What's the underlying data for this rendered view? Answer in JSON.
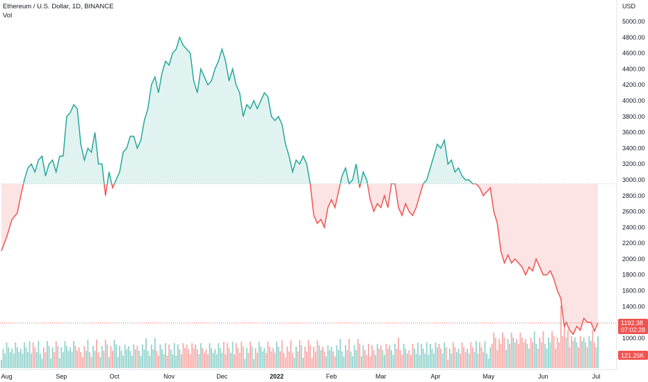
{
  "header": {
    "title": "Ethereum / U.S. Dollar, 1D, BINANCE",
    "volume_label": "Vol"
  },
  "colors": {
    "up": "#26a69a",
    "down": "#ef5350",
    "up_fill": "#e0f3f1",
    "down_fill": "#fde4e4",
    "grid": "#f0f3fa",
    "axis_text": "#131722"
  },
  "chart_data": {
    "type": "area",
    "title": "Ethereum / U.S. Dollar, 1D, BINANCE",
    "ylabel": "USD",
    "ylim": [
      800,
      5150
    ],
    "baseline": 2950,
    "last_price": "1192.38",
    "countdown": "07:02:28",
    "volume_last": "121.26K",
    "y_ticks": [
      "5000.00",
      "4800.00",
      "4600.00",
      "4400.00",
      "4200.00",
      "4000.00",
      "3800.00",
      "3600.00",
      "3400.00",
      "3200.00",
      "3000.00",
      "2800.00",
      "2600.00",
      "2400.00",
      "2200.00",
      "2000.00",
      "1800.00",
      "1600.00",
      "1400.00",
      "1000.00"
    ],
    "x_ticks": [
      {
        "label": "Aug",
        "day": 3,
        "bold": false
      },
      {
        "label": "Sep",
        "day": 34,
        "bold": false
      },
      {
        "label": "Oct",
        "day": 64,
        "bold": false
      },
      {
        "label": "Nov",
        "day": 95,
        "bold": false
      },
      {
        "label": "Dec",
        "day": 125,
        "bold": false
      },
      {
        "label": "2022",
        "day": 156,
        "bold": true
      },
      {
        "label": "Feb",
        "day": 187,
        "bold": false
      },
      {
        "label": "Mar",
        "day": 215,
        "bold": false
      },
      {
        "label": "Apr",
        "day": 246,
        "bold": false
      },
      {
        "label": "May",
        "day": 276,
        "bold": false
      },
      {
        "label": "Jun",
        "day": 307,
        "bold": false
      },
      {
        "label": "Jul",
        "day": 337,
        "bold": false
      }
    ],
    "price_points": [
      [
        0,
        2100
      ],
      [
        3,
        2280
      ],
      [
        6,
        2500
      ],
      [
        9,
        2580
      ],
      [
        11,
        2800
      ],
      [
        13,
        3000
      ],
      [
        15,
        3150
      ],
      [
        17,
        3200
      ],
      [
        19,
        3100
      ],
      [
        21,
        3250
      ],
      [
        23,
        3300
      ],
      [
        25,
        3050
      ],
      [
        27,
        3200
      ],
      [
        29,
        3250
      ],
      [
        31,
        3100
      ],
      [
        33,
        3300
      ],
      [
        35,
        3300
      ],
      [
        37,
        3800
      ],
      [
        39,
        3850
      ],
      [
        41,
        3950
      ],
      [
        43,
        3900
      ],
      [
        45,
        3450
      ],
      [
        47,
        3250
      ],
      [
        49,
        3400
      ],
      [
        51,
        3350
      ],
      [
        53,
        3600
      ],
      [
        55,
        3200
      ],
      [
        57,
        3200
      ],
      [
        59,
        2800
      ],
      [
        61,
        3100
      ],
      [
        63,
        2900
      ],
      [
        65,
        3000
      ],
      [
        67,
        3100
      ],
      [
        69,
        3350
      ],
      [
        71,
        3400
      ],
      [
        73,
        3550
      ],
      [
        75,
        3550
      ],
      [
        77,
        3400
      ],
      [
        79,
        3500
      ],
      [
        81,
        3750
      ],
      [
        83,
        3900
      ],
      [
        85,
        4200
      ],
      [
        87,
        4300
      ],
      [
        89,
        4100
      ],
      [
        91,
        4350
      ],
      [
        93,
        4500
      ],
      [
        95,
        4450
      ],
      [
        97,
        4600
      ],
      [
        99,
        4650
      ],
      [
        101,
        4800
      ],
      [
        103,
        4700
      ],
      [
        105,
        4650
      ],
      [
        107,
        4600
      ],
      [
        109,
        4250
      ],
      [
        111,
        4100
      ],
      [
        113,
        4400
      ],
      [
        115,
        4300
      ],
      [
        117,
        4200
      ],
      [
        119,
        4250
      ],
      [
        121,
        4400
      ],
      [
        123,
        4500
      ],
      [
        125,
        4650
      ],
      [
        127,
        4500
      ],
      [
        129,
        4250
      ],
      [
        131,
        4400
      ],
      [
        133,
        4200
      ],
      [
        135,
        4100
      ],
      [
        137,
        3800
      ],
      [
        139,
        3950
      ],
      [
        141,
        3900
      ],
      [
        143,
        4000
      ],
      [
        145,
        3900
      ],
      [
        147,
        4000
      ],
      [
        149,
        4100
      ],
      [
        151,
        4050
      ],
      [
        153,
        3800
      ],
      [
        155,
        3750
      ],
      [
        157,
        3800
      ],
      [
        159,
        3700
      ],
      [
        161,
        3450
      ],
      [
        163,
        3300
      ],
      [
        165,
        3100
      ],
      [
        167,
        3250
      ],
      [
        169,
        3200
      ],
      [
        171,
        3300
      ],
      [
        173,
        3200
      ],
      [
        175,
        2950
      ],
      [
        177,
        2550
      ],
      [
        179,
        2450
      ],
      [
        181,
        2500
      ],
      [
        183,
        2400
      ],
      [
        185,
        2650
      ],
      [
        187,
        2750
      ],
      [
        189,
        2650
      ],
      [
        191,
        2850
      ],
      [
        193,
        3050
      ],
      [
        195,
        3150
      ],
      [
        197,
        2950
      ],
      [
        199,
        3000
      ],
      [
        201,
        3200
      ],
      [
        203,
        2900
      ],
      [
        205,
        3100
      ],
      [
        207,
        3000
      ],
      [
        209,
        2750
      ],
      [
        211,
        2600
      ],
      [
        213,
        2700
      ],
      [
        215,
        2650
      ],
      [
        217,
        2800
      ],
      [
        219,
        2650
      ],
      [
        221,
        2950
      ],
      [
        223,
        2950
      ],
      [
        225,
        2650
      ],
      [
        227,
        2550
      ],
      [
        229,
        2700
      ],
      [
        231,
        2600
      ],
      [
        233,
        2550
      ],
      [
        235,
        2650
      ],
      [
        237,
        2800
      ],
      [
        239,
        2950
      ],
      [
        241,
        3000
      ],
      [
        243,
        3150
      ],
      [
        245,
        3300
      ],
      [
        247,
        3450
      ],
      [
        249,
        3400
      ],
      [
        251,
        3500
      ],
      [
        253,
        3200
      ],
      [
        255,
        3250
      ],
      [
        257,
        3100
      ],
      [
        259,
        3150
      ],
      [
        261,
        3050
      ],
      [
        263,
        3000
      ],
      [
        265,
        3000
      ],
      [
        267,
        2950
      ],
      [
        269,
        2950
      ],
      [
        271,
        2900
      ],
      [
        273,
        2800
      ],
      [
        275,
        2850
      ],
      [
        277,
        2900
      ],
      [
        279,
        2600
      ],
      [
        281,
        2450
      ],
      [
        283,
        2100
      ],
      [
        285,
        1950
      ],
      [
        287,
        2050
      ],
      [
        289,
        1950
      ],
      [
        291,
        2000
      ],
      [
        293,
        1950
      ],
      [
        295,
        1900
      ],
      [
        297,
        1800
      ],
      [
        299,
        1900
      ],
      [
        301,
        1850
      ],
      [
        303,
        2000
      ],
      [
        305,
        1900
      ],
      [
        307,
        1800
      ],
      [
        309,
        1800
      ],
      [
        311,
        1850
      ],
      [
        313,
        1750
      ],
      [
        315,
        1600
      ],
      [
        317,
        1500
      ],
      [
        318,
        1300
      ],
      [
        319,
        1150
      ],
      [
        320,
        1200
      ],
      [
        322,
        1100
      ],
      [
        324,
        1050
      ],
      [
        326,
        1150
      ],
      [
        328,
        1100
      ],
      [
        330,
        1250
      ],
      [
        332,
        1200
      ],
      [
        334,
        1200
      ],
      [
        336,
        1090
      ],
      [
        338,
        1190
      ]
    ],
    "last_day": 338
  }
}
